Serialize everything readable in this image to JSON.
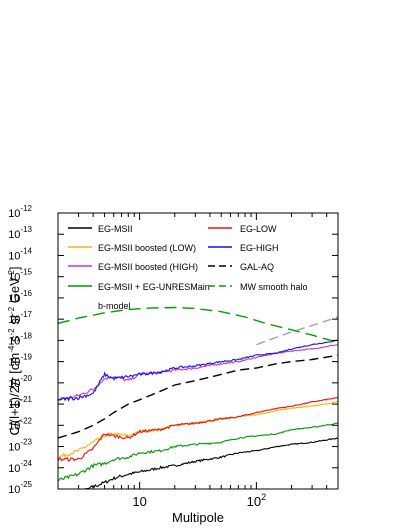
{
  "chart_data": {
    "type": "line",
    "xlabel": "Multipole",
    "ylabel_parts": [
      "C",
      "l",
      "(l+1)/2",
      "π",
      " [cm",
      "-4",
      " s",
      "-2",
      " sr",
      "-2",
      " GeV",
      "-2",
      "]"
    ],
    "xscale": "log",
    "yscale": "log",
    "xlim": [
      2,
      500
    ],
    "ylim": [
      1e-25,
      1e-12
    ],
    "xticks": [
      {
        "value": 10,
        "label": "10"
      },
      {
        "value": 100,
        "base": "10",
        "exp": "2"
      }
    ],
    "yticks": [
      {
        "value": -12,
        "base": "10",
        "exp": "-12"
      },
      {
        "value": -13,
        "base": "10",
        "exp": "-13"
      },
      {
        "value": -14,
        "base": "10",
        "exp": "-14"
      },
      {
        "value": -15,
        "base": "10",
        "exp": "-15"
      },
      {
        "value": -16,
        "base": "10",
        "exp": "-16"
      },
      {
        "value": -17,
        "base": "10",
        "exp": "-17"
      },
      {
        "value": -18,
        "base": "10",
        "exp": "-18"
      },
      {
        "value": -19,
        "base": "10",
        "exp": "-19"
      },
      {
        "value": -20,
        "base": "10",
        "exp": "-20"
      },
      {
        "value": -21,
        "base": "10",
        "exp": "-21"
      },
      {
        "value": -22,
        "base": "10",
        "exp": "-22"
      },
      {
        "value": -23,
        "base": "10",
        "exp": "-23"
      },
      {
        "value": -24,
        "base": "10",
        "exp": "-24"
      },
      {
        "value": -25,
        "base": "10",
        "exp": "-25"
      }
    ],
    "legend_placement": "top, two columns",
    "legend_extra": "b-model",
    "grid": false,
    "series": [
      {
        "name": "EG-MSII",
        "color": "#000000",
        "dash": "solid",
        "x": [
          2,
          3,
          4,
          5,
          6,
          8,
          10,
          15,
          20,
          30,
          50,
          70,
          100,
          150,
          200,
          300,
          500
        ],
        "y": [
          -25.4,
          -25.2,
          -24.9,
          -24.7,
          -24.5,
          -24.3,
          -24.2,
          -24.0,
          -23.9,
          -23.7,
          -23.5,
          -23.3,
          -23.2,
          -23.0,
          -22.9,
          -22.8,
          -22.6
        ]
      },
      {
        "name": "EG-MSII boosted (LOW)",
        "color": "#f5b700",
        "dash": "solid",
        "x": [
          2,
          3,
          4,
          5,
          6,
          8,
          10,
          15,
          20,
          30,
          50,
          70,
          100,
          150,
          200,
          300,
          500
        ],
        "y": [
          -23.5,
          -23.2,
          -22.8,
          -22.5,
          -22.4,
          -22.5,
          -22.3,
          -22.2,
          -22.0,
          -21.9,
          -21.7,
          -21.6,
          -21.5,
          -21.3,
          -21.2,
          -21.1,
          -20.9
        ]
      },
      {
        "name": "EG-MSII boosted (HIGH)",
        "color": "#cc33cc",
        "dash": "solid",
        "x": [
          2,
          3,
          4,
          5,
          6,
          8,
          10,
          15,
          20,
          30,
          50,
          70,
          100,
          150,
          200,
          300,
          500
        ],
        "y": [
          -20.8,
          -20.6,
          -20.3,
          -19.8,
          -19.7,
          -19.9,
          -19.6,
          -19.5,
          -19.4,
          -19.3,
          -19.1,
          -19.0,
          -18.8,
          -18.6,
          -18.5,
          -18.4,
          -18.2
        ]
      },
      {
        "name": "EG-MSII + EG-UNRESMain",
        "color": "#009900",
        "dash": "solid",
        "x": [
          2,
          3,
          4,
          5,
          6,
          8,
          10,
          15,
          20,
          30,
          50,
          70,
          100,
          150,
          200,
          300,
          500
        ],
        "y": [
          -24.6,
          -24.3,
          -23.9,
          -23.8,
          -23.6,
          -23.5,
          -23.3,
          -23.2,
          -23.0,
          -22.9,
          -22.8,
          -22.6,
          -22.5,
          -22.4,
          -22.2,
          -22.1,
          -21.9
        ]
      },
      {
        "name": "EG-LOW",
        "color": "#ee1111",
        "dash": "solid",
        "x": [
          2,
          3,
          4,
          5,
          6,
          8,
          10,
          15,
          20,
          30,
          50,
          70,
          100,
          150,
          200,
          300,
          500
        ],
        "y": [
          -23.6,
          -23.6,
          -23.1,
          -22.4,
          -22.5,
          -22.6,
          -22.3,
          -22.2,
          -22.0,
          -21.9,
          -21.7,
          -21.6,
          -21.4,
          -21.2,
          -21.1,
          -20.9,
          -20.7
        ]
      },
      {
        "name": "EG-HIGH",
        "color": "#1111ee",
        "dash": "solid",
        "x": [
          2,
          3,
          4,
          5,
          6,
          8,
          10,
          15,
          20,
          30,
          50,
          70,
          100,
          150,
          200,
          300,
          500
        ],
        "y": [
          -20.8,
          -20.7,
          -20.5,
          -19.6,
          -19.8,
          -19.7,
          -19.6,
          -19.5,
          -19.3,
          -19.2,
          -19.0,
          -18.9,
          -18.7,
          -18.6,
          -18.4,
          -18.2,
          -18.0
        ]
      },
      {
        "name": "GAL-AQ",
        "color": "#000000",
        "dash": "long",
        "x": [
          2,
          3,
          4,
          5,
          6,
          8,
          10,
          15,
          20,
          30,
          50,
          70,
          100,
          150,
          200,
          300,
          500
        ],
        "y": [
          -22.6,
          -22.3,
          -22.0,
          -21.7,
          -21.4,
          -21.0,
          -20.8,
          -20.4,
          -20.1,
          -19.9,
          -19.6,
          -19.4,
          -19.3,
          -19.1,
          -19.0,
          -18.9,
          -18.7
        ]
      },
      {
        "name": "MW smooth halo",
        "color": "#00a000",
        "dash": "medium",
        "x": [
          2,
          3,
          5,
          8,
          12,
          20,
          30,
          50,
          80,
          120,
          200,
          300,
          500
        ],
        "y": [
          -17.2,
          -16.95,
          -16.7,
          -16.55,
          -16.48,
          -16.45,
          -16.5,
          -16.65,
          -16.9,
          -17.2,
          -17.5,
          -17.75,
          -18.1
        ]
      },
      {
        "name": "",
        "color": "#a0a0a0",
        "dash": "long",
        "x": [
          100,
          200,
          300,
          500
        ],
        "y": [
          -18.2,
          -17.6,
          -17.3,
          -16.9
        ]
      }
    ]
  }
}
